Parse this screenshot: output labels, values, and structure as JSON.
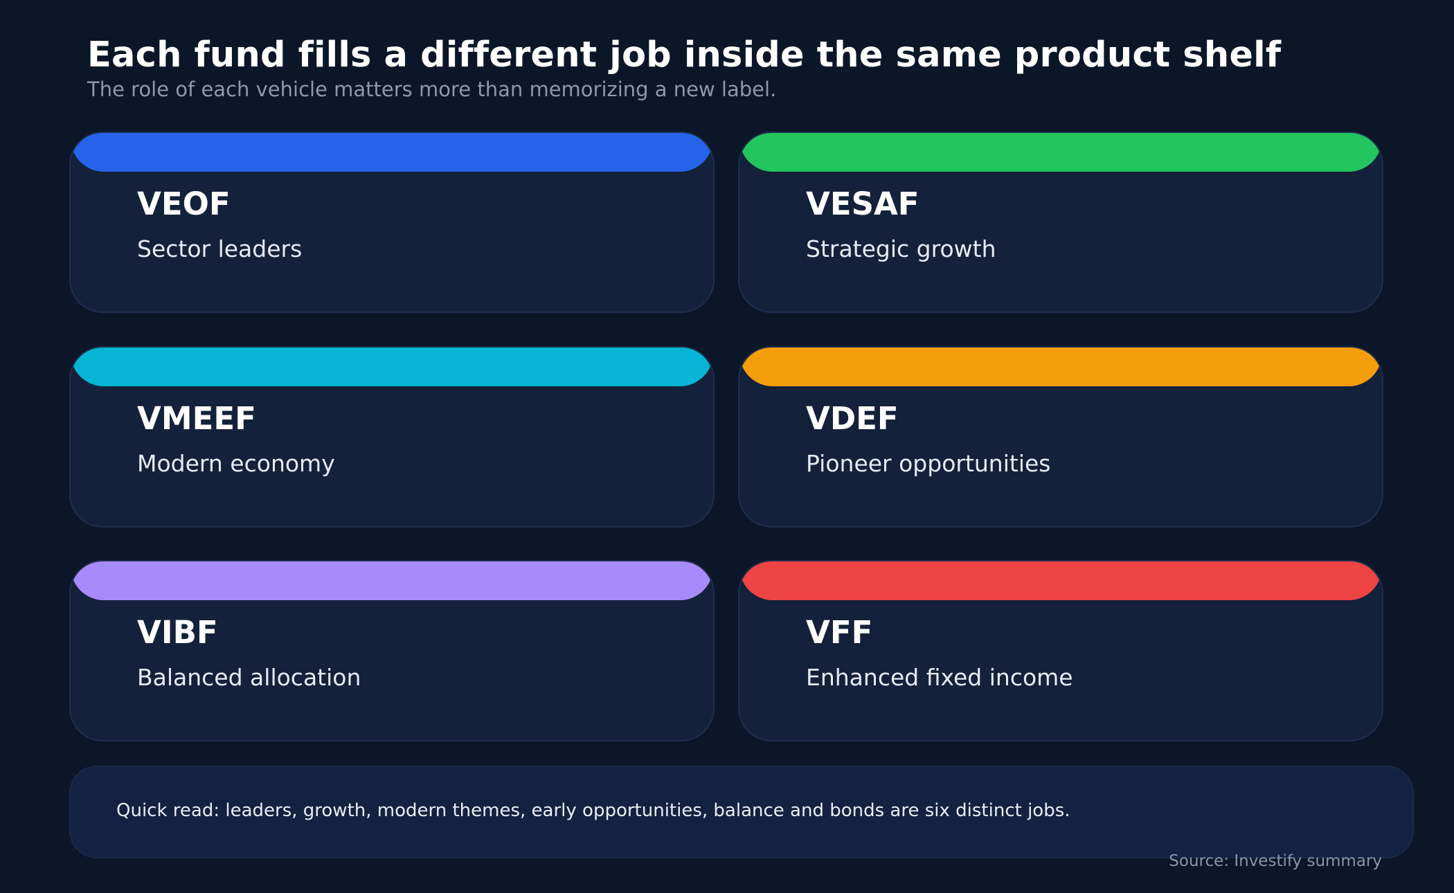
{
  "header": {
    "title": "Each fund fills a different job inside the same product shelf",
    "subtitle": "The role of each vehicle matters more than memorizing a new label."
  },
  "funds": [
    {
      "name": "VEOF",
      "role": "Sector leaders",
      "color": "#2563eb"
    },
    {
      "name": "VESAF",
      "role": "Strategic growth",
      "color": "#22c55e"
    },
    {
      "name": "VMEEF",
      "role": "Modern economy",
      "color": "#06b6d4"
    },
    {
      "name": "VDEF",
      "role": "Pioneer opportunities",
      "color": "#f59e0b"
    },
    {
      "name": "VIBF",
      "role": "Balanced allocation",
      "color": "#a78bfa"
    },
    {
      "name": "VFF",
      "role": "Enhanced fixed income",
      "color": "#ef4444"
    }
  ],
  "note": {
    "text": "Quick read: leaders, growth, modern themes, early opportunities, balance and bonds are six distinct jobs."
  },
  "source": "Source: Investify summary"
}
